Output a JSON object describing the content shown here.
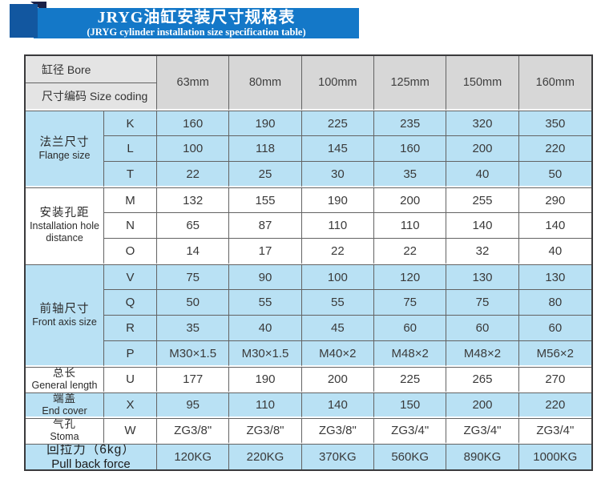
{
  "header": {
    "title": "JRYG油缸安装尺寸规格表",
    "subtitle": "(JRYG cylinder installation size specification table)",
    "banner_color": "#1478c8",
    "square_color": "#1257a0",
    "fold_color": "#1b2147"
  },
  "table": {
    "bore_label": "缸径  Bore",
    "size_coding_label": "尺寸编码 Size coding",
    "columns": [
      "63mm",
      "80mm",
      "100mm",
      "125mm",
      "150mm",
      "160mm"
    ],
    "colors": {
      "row_blue": "#b9e1f4",
      "row_white": "#ffffff",
      "header_gray": "#d7d7d7",
      "header_gray_light": "#e4e4e4",
      "border": "#636363"
    },
    "sections": [
      {
        "slug": "flange-size",
        "label_zh": "法兰尺寸",
        "label_en": "Flange size",
        "tone": "blue",
        "merged": false,
        "rows": [
          {
            "code": "K",
            "values": [
              "160",
              "190",
              "225",
              "235",
              "320",
              "350"
            ]
          },
          {
            "code": "L",
            "values": [
              "100",
              "118",
              "145",
              "160",
              "200",
              "220"
            ]
          },
          {
            "code": "T",
            "values": [
              "22",
              "25",
              "30",
              "35",
              "40",
              "50"
            ]
          }
        ]
      },
      {
        "slug": "installation-hole-distance",
        "label_zh": "安装孔距",
        "label_en": "Installation hole distance",
        "tone": "white",
        "merged": false,
        "rows": [
          {
            "code": "M",
            "values": [
              "132",
              "155",
              "190",
              "200",
              "255",
              "290"
            ]
          },
          {
            "code": "N",
            "values": [
              "65",
              "87",
              "110",
              "110",
              "140",
              "140"
            ]
          },
          {
            "code": "O",
            "values": [
              "14",
              "17",
              "22",
              "22",
              "32",
              "40"
            ]
          }
        ]
      },
      {
        "slug": "front-axis-size",
        "label_zh": "前轴尺寸",
        "label_en": "Front axis size",
        "tone": "blue",
        "merged": false,
        "rows": [
          {
            "code": "V",
            "values": [
              "75",
              "90",
              "100",
              "120",
              "130",
              "130"
            ]
          },
          {
            "code": "Q",
            "values": [
              "50",
              "55",
              "55",
              "75",
              "75",
              "80"
            ]
          },
          {
            "code": "R",
            "values": [
              "35",
              "40",
              "45",
              "60",
              "60",
              "60"
            ]
          },
          {
            "code": "P",
            "values": [
              "M30×1.5",
              "M30×1.5",
              "M40×2",
              "M48×2",
              "M48×2",
              "M56×2"
            ]
          }
        ]
      },
      {
        "slug": "general-length",
        "label_zh": "总长",
        "label_en": "General length",
        "tone": "white",
        "merged": false,
        "rows": [
          {
            "code": "U",
            "values": [
              "177",
              "190",
              "200",
              "225",
              "265",
              "270"
            ]
          }
        ]
      },
      {
        "slug": "end-cover",
        "label_zh": "端盖",
        "label_en": "End cover",
        "tone": "blue",
        "merged": false,
        "rows": [
          {
            "code": "X",
            "values": [
              "95",
              "110",
              "140",
              "150",
              "200",
              "220"
            ]
          }
        ]
      },
      {
        "slug": "stoma",
        "label_zh": "气孔",
        "label_en": "Stoma",
        "tone": "white",
        "merged": false,
        "rows": [
          {
            "code": "W",
            "values": [
              "ZG3/8\"",
              "ZG3/8\"",
              "ZG3/8\"",
              "ZG3/4\"",
              "ZG3/4\"",
              "ZG3/4\""
            ]
          }
        ]
      },
      {
        "slug": "pull-back-force",
        "label_zh": "回拉力（6kg）",
        "label_en": "Pull back force",
        "tone": "blue",
        "merged": true,
        "rows": [
          {
            "code": null,
            "values": [
              "120KG",
              "220KG",
              "370KG",
              "560KG",
              "890KG",
              "1000KG"
            ]
          }
        ]
      }
    ]
  }
}
